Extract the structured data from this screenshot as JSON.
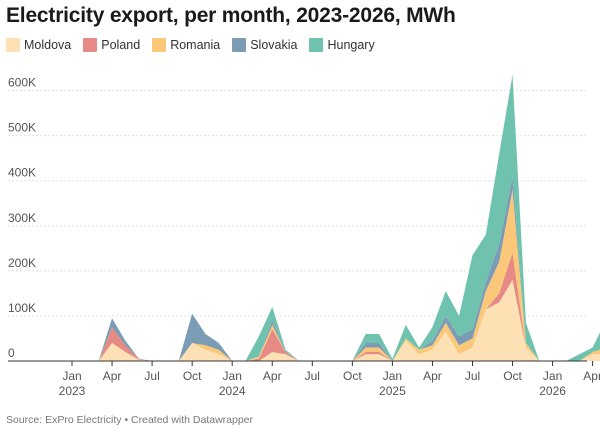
{
  "title": "Electricity export, per month, 2023-2026, MWh",
  "source": "Source: ExPro Electricity • Created with Datawrapper",
  "chart_data": {
    "type": "area",
    "stacked": true,
    "title": "Electricity export, per month, 2023-2026, MWh",
    "x_start": "2023-01",
    "x_labels": [
      {
        "index": 0,
        "month": "Jan",
        "year": "2023"
      },
      {
        "index": 3,
        "month": "Apr",
        "year": ""
      },
      {
        "index": 6,
        "month": "Jul",
        "year": ""
      },
      {
        "index": 9,
        "month": "Oct",
        "year": ""
      },
      {
        "index": 12,
        "month": "Jan",
        "year": "2024"
      },
      {
        "index": 15,
        "month": "Apr",
        "year": ""
      },
      {
        "index": 18,
        "month": "Jul",
        "year": ""
      },
      {
        "index": 21,
        "month": "Oct",
        "year": ""
      },
      {
        "index": 24,
        "month": "Jan",
        "year": "2025"
      },
      {
        "index": 27,
        "month": "Apr",
        "year": ""
      },
      {
        "index": 30,
        "month": "Jul",
        "year": ""
      },
      {
        "index": 33,
        "month": "Oct",
        "year": ""
      },
      {
        "index": 36,
        "month": "Jan",
        "year": "2026"
      },
      {
        "index": 39,
        "month": "Apr",
        "year": ""
      }
    ],
    "yticks": [
      0,
      100000,
      200000,
      300000,
      400000,
      500000,
      600000
    ],
    "ytick_labels": [
      "0",
      "100K",
      "200K",
      "300K",
      "400K",
      "500K",
      "600K"
    ],
    "ylim": [
      0,
      650000
    ],
    "series": [
      {
        "name": "Moldova",
        "color": "#fde0b3",
        "values": [
          0,
          0,
          0,
          40000,
          20000,
          3000,
          0,
          0,
          0,
          40000,
          25000,
          15000,
          0,
          0,
          0,
          20000,
          15000,
          0,
          0,
          0,
          0,
          0,
          15000,
          15000,
          0,
          45000,
          15000,
          25000,
          65000,
          15000,
          30000,
          115000,
          130000,
          180000,
          30000,
          0,
          0,
          0,
          0,
          15000,
          15000
        ]
      },
      {
        "name": "Poland",
        "color": "#e58a84",
        "values": [
          0,
          0,
          0,
          35000,
          15000,
          2000,
          0,
          0,
          0,
          0,
          0,
          0,
          0,
          0,
          5000,
          50000,
          5000,
          0,
          0,
          0,
          0,
          0,
          5000,
          5000,
          0,
          0,
          0,
          0,
          0,
          0,
          0,
          0,
          20000,
          60000,
          0,
          0,
          0,
          0,
          0,
          0,
          0
        ]
      },
      {
        "name": "Romania",
        "color": "#fbc87a",
        "values": [
          0,
          0,
          0,
          0,
          0,
          0,
          0,
          0,
          0,
          0,
          10000,
          10000,
          0,
          0,
          5000,
          10000,
          0,
          0,
          0,
          0,
          0,
          0,
          10000,
          10000,
          0,
          5000,
          10000,
          10000,
          20000,
          20000,
          20000,
          40000,
          70000,
          140000,
          10000,
          0,
          0,
          0,
          0,
          5000,
          15000
        ]
      },
      {
        "name": "Slovakia",
        "color": "#7c9cb5",
        "values": [
          0,
          0,
          0,
          20000,
          10000,
          0,
          0,
          0,
          0,
          65000,
          25000,
          15000,
          0,
          0,
          0,
          10000,
          0,
          0,
          0,
          0,
          0,
          0,
          10000,
          10000,
          0,
          0,
          0,
          10000,
          15000,
          20000,
          20000,
          20000,
          40000,
          30000,
          0,
          0,
          0,
          0,
          0,
          0,
          0
        ]
      },
      {
        "name": "Hungary",
        "color": "#6fc3ae",
        "values": [
          0,
          0,
          0,
          0,
          0,
          0,
          0,
          0,
          0,
          0,
          0,
          0,
          0,
          0,
          45000,
          30000,
          5000,
          0,
          0,
          0,
          0,
          0,
          20000,
          20000,
          5000,
          30000,
          5000,
          30000,
          55000,
          45000,
          165000,
          105000,
          200000,
          225000,
          45000,
          0,
          0,
          0,
          15000,
          10000,
          60000
        ]
      }
    ],
    "legend_position": "top-left",
    "grid": true
  }
}
